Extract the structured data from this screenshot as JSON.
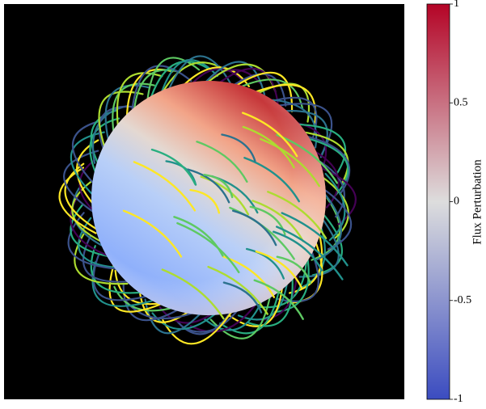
{
  "colorbar": {
    "label": "Flux Perturbation",
    "lim": [
      -1,
      1
    ],
    "ticks": [
      -1,
      -0.5,
      0,
      0.5,
      1
    ],
    "colors": [
      "#3b4cc0",
      "#dddddd",
      "#b40426"
    ]
  }
}
